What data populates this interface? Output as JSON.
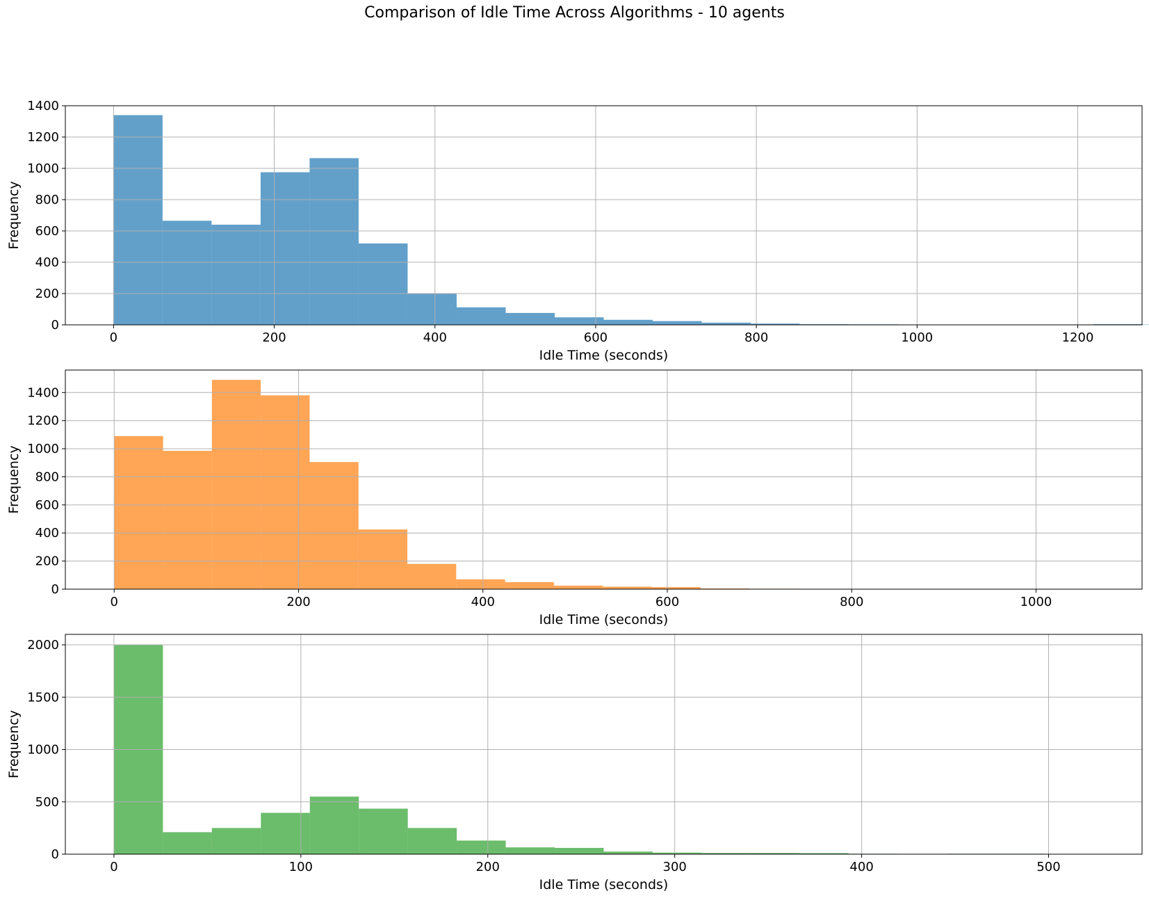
{
  "suptitle": "Comparison of Idle Time Across Algorithms - 10 agents",
  "chart_data": [
    {
      "type": "bar",
      "color": "#1f77b4",
      "opacity": 0.7,
      "xlabel": "Idle Time (seconds)",
      "ylabel": "Frequency",
      "xlim": [
        -60,
        1280
      ],
      "ylim": [
        0,
        1400
      ],
      "xticks": [
        0,
        200,
        400,
        600,
        800,
        1000,
        1200
      ],
      "yticks": [
        0,
        200,
        400,
        600,
        800,
        1000,
        1200,
        1400
      ],
      "grid": true,
      "bin_start": 0,
      "bin_width": 61,
      "values": [
        1340,
        665,
        640,
        975,
        1065,
        520,
        200,
        112,
        76,
        48,
        32,
        24,
        14,
        8,
        4,
        3,
        2,
        1,
        0,
        0,
        4,
        2
      ]
    },
    {
      "type": "bar",
      "color": "#ff7f0e",
      "opacity": 0.7,
      "xlabel": "Idle Time (seconds)",
      "ylabel": "Frequency",
      "xlim": [
        -53,
        1115
      ],
      "ylim": [
        0,
        1560
      ],
      "xticks": [
        0,
        200,
        400,
        600,
        800,
        1000
      ],
      "yticks": [
        0,
        200,
        400,
        600,
        800,
        1000,
        1200,
        1400
      ],
      "grid": true,
      "bin_start": 0,
      "bin_width": 53,
      "values": [
        1090,
        985,
        1490,
        1380,
        905,
        425,
        180,
        70,
        50,
        25,
        18,
        15,
        5,
        3,
        0,
        0,
        0,
        0,
        0,
        0
      ]
    },
    {
      "type": "bar",
      "color": "#2ca02c",
      "opacity": 0.7,
      "xlabel": "Idle Time (seconds)",
      "ylabel": "Frequency",
      "xlim": [
        -26,
        550
      ],
      "ylim": [
        0,
        2100
      ],
      "xticks": [
        0,
        100,
        200,
        300,
        400,
        500
      ],
      "yticks": [
        0,
        500,
        1000,
        1500,
        2000
      ],
      "grid": true,
      "bin_start": 0,
      "bin_width": 26.2,
      "values": [
        2000,
        210,
        250,
        395,
        550,
        435,
        250,
        130,
        65,
        60,
        25,
        15,
        12,
        12,
        10,
        4,
        0,
        4,
        4,
        3
      ]
    }
  ]
}
